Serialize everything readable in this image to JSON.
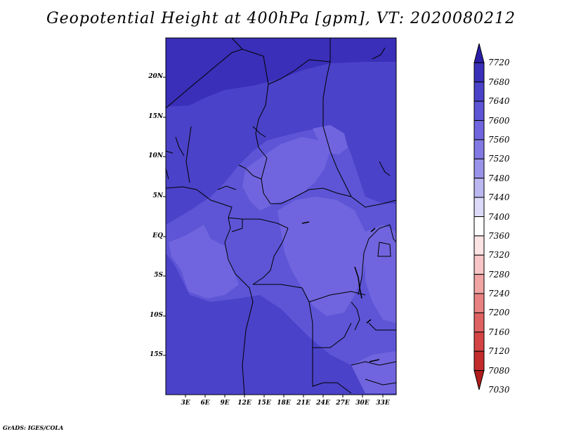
{
  "title": "Geopotential Height at 400hPa [gpm], VT: 2020080212",
  "credit": "GrADS: IGES/COLA",
  "map": {
    "lat_labels": [
      "20N",
      "15N",
      "10N",
      "5N",
      "EQ",
      "5S",
      "10S",
      "15S"
    ],
    "lon_labels": [
      "3E",
      "6E",
      "9E",
      "12E",
      "15E",
      "18E",
      "21E",
      "24E",
      "27E",
      "30E",
      "33E"
    ],
    "fill_colors": {
      "7680": "#3a2fb8",
      "7640": "#4a42c8",
      "7600": "#5d55d6",
      "7560": "#7065de"
    }
  },
  "colorbar": {
    "levels": [
      "7720",
      "7680",
      "7640",
      "7600",
      "7560",
      "7520",
      "7480",
      "7440",
      "7400",
      "7360",
      "7320",
      "7280",
      "7240",
      "7200",
      "7160",
      "7120",
      "7080",
      "7030"
    ],
    "colors": [
      "#2a1ea6",
      "#3a2fb8",
      "#4a42c8",
      "#5d55d6",
      "#7065de",
      "#8279e4",
      "#9a93ea",
      "#bbb7f1",
      "#dcdaf8",
      "#ffffff",
      "#fde4e4",
      "#f8c6c6",
      "#f1a4a4",
      "#e88282",
      "#df6262",
      "#d44444",
      "#c32c2c",
      "#b01c1c"
    ]
  }
}
